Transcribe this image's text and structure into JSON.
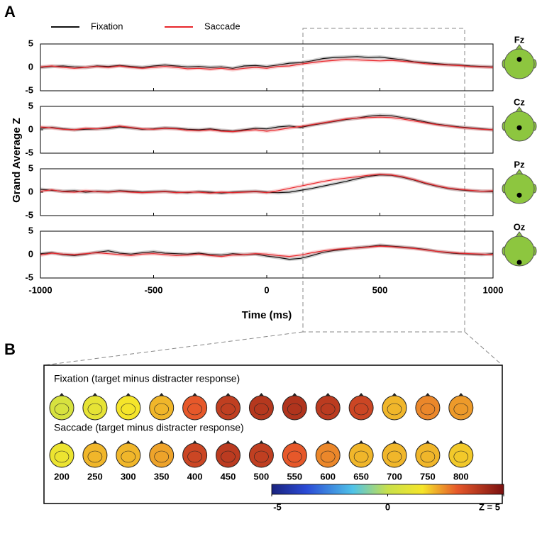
{
  "panel_labels": [
    "A",
    "B"
  ],
  "axis_labels": {
    "x": "Time (ms)",
    "y": "Grand Average Z"
  },
  "chart_data": [
    {
      "type": "line",
      "title": "Fz",
      "electrode_position": 0.35,
      "x": [
        -1000,
        -950,
        -900,
        -850,
        -800,
        -750,
        -700,
        -650,
        -600,
        -550,
        -500,
        -450,
        -400,
        -350,
        -300,
        -250,
        -200,
        -150,
        -100,
        -50,
        0,
        50,
        100,
        150,
        200,
        250,
        300,
        350,
        400,
        450,
        500,
        550,
        600,
        650,
        700,
        750,
        800,
        850,
        900,
        950,
        1000
      ],
      "xlim": [
        -1000,
        1000
      ],
      "xticks": [
        -1000,
        -500,
        0,
        500,
        1000
      ],
      "ylim": [
        -5,
        5
      ],
      "yticks": [
        -5,
        0,
        5
      ],
      "series": [
        {
          "name": "Fixation",
          "color": "#111111",
          "values": [
            0,
            0.2,
            0.3,
            0.1,
            0,
            0.3,
            0.2,
            0.4,
            0.2,
            0,
            0.3,
            0.5,
            0.3,
            0.1,
            0.2,
            0,
            0.1,
            -0.2,
            0.3,
            0.4,
            0.2,
            0.5,
            0.9,
            1.0,
            1.4,
            1.9,
            2.1,
            2.2,
            2.3,
            2.1,
            2.2,
            1.9,
            1.6,
            1.2,
            1.0,
            0.8,
            0.6,
            0.5,
            0.3,
            0.2,
            0.1
          ]
        },
        {
          "name": "Saccade",
          "color": "#e8262b",
          "values": [
            0.1,
            0.3,
            0,
            -0.2,
            0,
            0.2,
            0,
            0.3,
            0,
            -0.2,
            0,
            0.2,
            0,
            -0.3,
            -0.2,
            -0.4,
            -0.2,
            -0.5,
            -0.2,
            0,
            -0.2,
            0.2,
            0.3,
            0.7,
            1.0,
            1.3,
            1.5,
            1.7,
            1.6,
            1.5,
            1.4,
            1.5,
            1.3,
            1.1,
            0.8,
            0.6,
            0.5,
            0.4,
            0.2,
            0.1,
            0
          ]
        }
      ]
    },
    {
      "type": "line",
      "title": "Cz",
      "electrode_position": 0.55,
      "x": [
        -1000,
        -950,
        -900,
        -850,
        -800,
        -750,
        -700,
        -650,
        -600,
        -550,
        -500,
        -450,
        -400,
        -350,
        -300,
        -250,
        -200,
        -150,
        -100,
        -50,
        0,
        50,
        100,
        150,
        200,
        250,
        300,
        350,
        400,
        450,
        500,
        550,
        600,
        650,
        700,
        750,
        800,
        850,
        900,
        950,
        1000
      ],
      "xlim": [
        -1000,
        1000
      ],
      "xticks": [
        -1000,
        -500,
        0,
        500,
        1000
      ],
      "ylim": [
        -5,
        5
      ],
      "yticks": [
        -5,
        0,
        5
      ],
      "series": [
        {
          "name": "Fixation",
          "color": "#111111",
          "values": [
            0.3,
            0.5,
            0.2,
            0,
            0.1,
            0.2,
            0.3,
            0.6,
            0.4,
            0.1,
            0.2,
            0.4,
            0.3,
            0.1,
            0,
            0.2,
            -0.1,
            -0.3,
            0,
            0.3,
            0.2,
            0.6,
            0.8,
            0.5,
            1.0,
            1.4,
            1.8,
            2.2,
            2.5,
            2.9,
            3.1,
            3.0,
            2.6,
            2.2,
            1.7,
            1.2,
            0.9,
            0.6,
            0.4,
            0.2,
            0
          ]
        },
        {
          "name": "Saccade",
          "color": "#e8262b",
          "values": [
            0.6,
            0.4,
            0.1,
            0,
            0.3,
            0.2,
            0.5,
            0.8,
            0.5,
            0.2,
            0.1,
            0.3,
            0.2,
            -0.1,
            -0.2,
            0,
            -0.3,
            -0.4,
            -0.2,
            0,
            -0.3,
            0,
            0.4,
            0.7,
            1.1,
            1.5,
            1.9,
            2.3,
            2.5,
            2.6,
            2.7,
            2.6,
            2.3,
            1.9,
            1.5,
            1.1,
            0.8,
            0.5,
            0.3,
            0.1,
            0
          ]
        }
      ]
    },
    {
      "type": "line",
      "title": "Pz",
      "electrode_position": 0.72,
      "x": [
        -1000,
        -950,
        -900,
        -850,
        -800,
        -750,
        -700,
        -650,
        -600,
        -550,
        -500,
        -450,
        -400,
        -350,
        -300,
        -250,
        -200,
        -150,
        -100,
        -50,
        0,
        50,
        100,
        150,
        200,
        250,
        300,
        350,
        400,
        450,
        500,
        550,
        600,
        650,
        700,
        750,
        800,
        850,
        900,
        950,
        1000
      ],
      "xlim": [
        -1000,
        1000
      ],
      "xticks": [
        -1000,
        -500,
        0,
        500,
        1000
      ],
      "ylim": [
        -5,
        5
      ],
      "yticks": [
        -5,
        0,
        5
      ],
      "series": [
        {
          "name": "Fixation",
          "color": "#111111",
          "values": [
            0.6,
            0.4,
            0.2,
            0.3,
            0,
            0.2,
            0.1,
            0.3,
            0.2,
            0,
            0.1,
            0.2,
            0,
            -0.1,
            0.1,
            0,
            -0.2,
            0,
            0.1,
            0.2,
            0,
            -0.1,
            0,
            0.4,
            0.8,
            1.3,
            1.8,
            2.3,
            2.9,
            3.4,
            3.7,
            3.6,
            3.2,
            2.6,
            1.9,
            1.3,
            0.8,
            0.5,
            0.3,
            0.2,
            0.1
          ]
        },
        {
          "name": "Saccade",
          "color": "#e8262b",
          "values": [
            0.2,
            0.5,
            0.1,
            0,
            0.3,
            0.1,
            0,
            0.2,
            0,
            -0.1,
            0,
            0.1,
            -0.1,
            0,
            0,
            -0.2,
            0,
            -0.1,
            0,
            0.1,
            -0.1,
            0.3,
            0.8,
            1.3,
            1.8,
            2.3,
            2.7,
            3.0,
            3.3,
            3.6,
            3.8,
            3.7,
            3.3,
            2.7,
            2.0,
            1.4,
            0.9,
            0.6,
            0.4,
            0.2,
            0.3
          ]
        }
      ]
    },
    {
      "type": "line",
      "title": "Oz",
      "electrode_position": 0.88,
      "x": [
        -1000,
        -950,
        -900,
        -850,
        -800,
        -750,
        -700,
        -650,
        -600,
        -550,
        -500,
        -450,
        -400,
        -350,
        -300,
        -250,
        -200,
        -150,
        -100,
        -50,
        0,
        50,
        100,
        150,
        200,
        250,
        300,
        350,
        400,
        450,
        500,
        550,
        600,
        650,
        700,
        750,
        800,
        850,
        900,
        950,
        1000
      ],
      "xlim": [
        -1000,
        1000
      ],
      "xticks": [
        -1000,
        -500,
        0,
        500,
        1000
      ],
      "ylim": [
        -5,
        5
      ],
      "yticks": [
        -5,
        0,
        5
      ],
      "series": [
        {
          "name": "Fixation",
          "color": "#111111",
          "values": [
            0.2,
            0.4,
            0,
            -0.2,
            0.1,
            0.5,
            0.8,
            0.3,
            0.1,
            0.4,
            0.6,
            0.3,
            0.2,
            0.1,
            0.3,
            0,
            -0.1,
            0.2,
            0,
            0.1,
            -0.3,
            -0.6,
            -1.0,
            -0.8,
            -0.2,
            0.5,
            0.9,
            1.2,
            1.5,
            1.7,
            2.0,
            1.8,
            1.6,
            1.4,
            1.1,
            0.7,
            0.4,
            0.2,
            0.1,
            0,
            0.2
          ]
        },
        {
          "name": "Saccade",
          "color": "#e8262b",
          "values": [
            -0.1,
            0.3,
            0.1,
            0,
            0.2,
            0.4,
            0.2,
            0,
            -0.2,
            0.1,
            0.2,
            0,
            -0.2,
            -0.1,
            0.1,
            -0.2,
            -0.4,
            -0.1,
            0,
            0.2,
            0.1,
            -0.2,
            -0.4,
            -0.1,
            0.4,
            0.8,
            1.1,
            1.3,
            1.4,
            1.6,
            1.8,
            1.7,
            1.5,
            1.3,
            1.0,
            0.7,
            0.5,
            0.3,
            0.2,
            0.1,
            0
          ]
        }
      ]
    },
    {
      "type": "topomap",
      "categories": [
        200,
        250,
        300,
        350,
        400,
        450,
        500,
        550,
        600,
        650,
        700,
        750,
        800
      ],
      "series": [
        {
          "name": "Fixation (target minus distracter response)",
          "values": [
            0.5,
            1,
            1.5,
            2,
            3,
            3.7,
            3.9,
            4,
            3.8,
            3.5,
            2,
            2.5,
            2.3
          ]
        },
        {
          "name": "Saccade (target minus distracter response)",
          "values": [
            1.2,
            2,
            2,
            2.2,
            3.5,
            3.8,
            3.7,
            3,
            2.5,
            2,
            2,
            2,
            1.8
          ]
        }
      ],
      "clim": [
        -5,
        5
      ],
      "cticks": [
        -5,
        0,
        {
          "value": 5,
          "label": "Z = 5"
        }
      ]
    }
  ]
}
